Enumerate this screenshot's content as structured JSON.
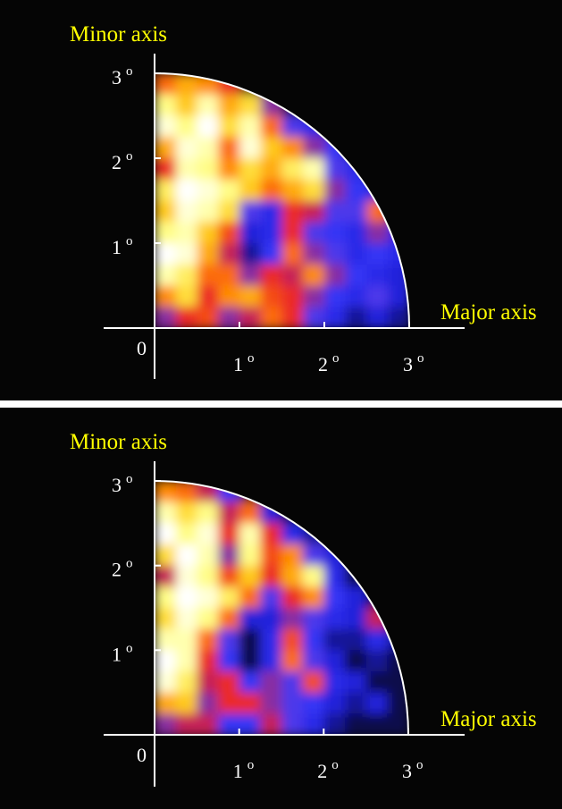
{
  "colors": {
    "background": "#050505",
    "axis": "#ffffff",
    "axis_title": "#ffff00",
    "colormap": [
      "#000000",
      "#1f1fd8",
      "#3c3cff",
      "#e81e2e",
      "#ff7a00",
      "#ffd21e",
      "#ffff8c",
      "#ffffff"
    ]
  },
  "chart_data": [
    {
      "type": "heatmap",
      "title": "",
      "xlabel": "Major axis",
      "ylabel": "Minor axis",
      "xlim": [
        0,
        3
      ],
      "ylim": [
        0,
        3
      ],
      "region": "quarter-disk, radius 3",
      "x_ticks": [
        {
          "value": 0,
          "label": "0"
        },
        {
          "value": 1,
          "label": "1"
        },
        {
          "value": 2,
          "label": "2"
        },
        {
          "value": 3,
          "label": "3"
        }
      ],
      "y_ticks": [
        {
          "value": 1,
          "label": "1"
        },
        {
          "value": 2,
          "label": "2"
        },
        {
          "value": 3,
          "label": "3"
        }
      ],
      "degree_symbol": "o",
      "x_centers": [
        0.125,
        0.375,
        0.625,
        0.875,
        1.125,
        1.375,
        1.625,
        1.875,
        2.125,
        2.375,
        2.625,
        2.875
      ],
      "y_centers": [
        2.875,
        2.625,
        2.375,
        2.125,
        1.875,
        1.625,
        1.375,
        1.125,
        0.875,
        0.625,
        0.375,
        0.125
      ],
      "intensity": [
        [
          0.55,
          0.65,
          0.6,
          0.45,
          0,
          0,
          0,
          0,
          0,
          0,
          0,
          0
        ],
        [
          0.85,
          0.7,
          0.9,
          0.65,
          0.75,
          0.35,
          0,
          0,
          0,
          0,
          0,
          0
        ],
        [
          0.95,
          0.85,
          1.0,
          0.75,
          0.9,
          0.55,
          0.3,
          0.2,
          0,
          0,
          0,
          0
        ],
        [
          0.65,
          0.95,
          0.9,
          0.55,
          0.95,
          0.7,
          0.6,
          0.35,
          0.25,
          0,
          0,
          0
        ],
        [
          0.45,
          0.9,
          0.85,
          0.6,
          0.75,
          0.65,
          0.8,
          0.9,
          0.3,
          0.2,
          0,
          0
        ],
        [
          0.8,
          1.0,
          0.95,
          0.85,
          0.7,
          0.55,
          0.65,
          0.75,
          0.35,
          0.25,
          0.15,
          0
        ],
        [
          0.7,
          0.95,
          0.9,
          0.75,
          0.3,
          0.2,
          0.45,
          0.4,
          0.3,
          0.3,
          0.55,
          0
        ],
        [
          0.85,
          0.9,
          0.7,
          0.5,
          0.15,
          0.2,
          0.45,
          0.3,
          0.25,
          0.2,
          0.35,
          0.2
        ],
        [
          1.0,
          0.95,
          0.65,
          0.4,
          0.1,
          0.25,
          0.55,
          0.35,
          0.3,
          0.2,
          0.25,
          0.2
        ],
        [
          0.9,
          0.8,
          0.55,
          0.55,
          0.35,
          0.45,
          0.4,
          0.6,
          0.35,
          0.25,
          0.2,
          0.15
        ],
        [
          0.6,
          0.75,
          0.45,
          0.6,
          0.65,
          0.5,
          0.45,
          0.35,
          0.25,
          0.2,
          0.3,
          0.15
        ],
        [
          0.35,
          0.45,
          0.5,
          0.35,
          0.4,
          0.55,
          0.45,
          0.3,
          0.2,
          0.1,
          0.15,
          0.1
        ]
      ]
    },
    {
      "type": "heatmap",
      "title": "",
      "xlabel": "Major axis",
      "ylabel": "Minor axis",
      "xlim": [
        0,
        3
      ],
      "ylim": [
        0,
        3
      ],
      "region": "quarter-disk, radius 3",
      "x_ticks": [
        {
          "value": 0,
          "label": "0"
        },
        {
          "value": 1,
          "label": "1"
        },
        {
          "value": 2,
          "label": "2"
        },
        {
          "value": 3,
          "label": "3"
        }
      ],
      "y_ticks": [
        {
          "value": 1,
          "label": "1"
        },
        {
          "value": 2,
          "label": "2"
        },
        {
          "value": 3,
          "label": "3"
        }
      ],
      "degree_symbol": "o",
      "x_centers": [
        0.125,
        0.375,
        0.625,
        0.875,
        1.125,
        1.375,
        1.625,
        1.875,
        2.125,
        2.375,
        2.625,
        2.875
      ],
      "y_centers": [
        2.875,
        2.625,
        2.375,
        2.125,
        1.875,
        1.625,
        1.375,
        1.125,
        0.875,
        0.625,
        0.375,
        0.125
      ],
      "intensity": [
        [
          0.6,
          0.55,
          0.4,
          0.25,
          0,
          0,
          0,
          0,
          0,
          0,
          0,
          0
        ],
        [
          0.9,
          0.75,
          0.85,
          0.4,
          0.55,
          0.15,
          0,
          0,
          0,
          0,
          0,
          0
        ],
        [
          1.0,
          0.85,
          0.95,
          0.45,
          0.9,
          0.45,
          0.2,
          0.1,
          0,
          0,
          0,
          0
        ],
        [
          0.75,
          1.0,
          0.9,
          0.35,
          0.85,
          0.5,
          0.6,
          0.3,
          0.15,
          0,
          0,
          0
        ],
        [
          0.4,
          0.95,
          0.85,
          0.5,
          0.7,
          0.45,
          0.65,
          0.85,
          0.2,
          0.05,
          0,
          0
        ],
        [
          0.85,
          1.0,
          0.95,
          0.8,
          0.55,
          0.3,
          0.45,
          0.6,
          0.25,
          0.15,
          0.05,
          0
        ],
        [
          0.75,
          0.95,
          0.85,
          0.55,
          0.15,
          0.15,
          0.35,
          0.3,
          0.2,
          0.15,
          0.4,
          0
        ],
        [
          0.9,
          0.9,
          0.55,
          0.3,
          0.05,
          0.2,
          0.5,
          0.25,
          0.1,
          0.1,
          0.2,
          0.1
        ],
        [
          1.0,
          0.9,
          0.45,
          0.25,
          0.05,
          0.2,
          0.55,
          0.3,
          0.15,
          0.05,
          0.1,
          0.05
        ],
        [
          0.95,
          0.8,
          0.4,
          0.45,
          0.25,
          0.35,
          0.3,
          0.5,
          0.2,
          0.15,
          0.05,
          0.05
        ],
        [
          0.65,
          0.7,
          0.35,
          0.45,
          0.45,
          0.35,
          0.3,
          0.25,
          0.15,
          0.1,
          0.15,
          0.05
        ],
        [
          0.35,
          0.4,
          0.4,
          0.25,
          0.25,
          0.4,
          0.3,
          0.2,
          0.1,
          0.05,
          0.05,
          0.05
        ]
      ]
    }
  ]
}
